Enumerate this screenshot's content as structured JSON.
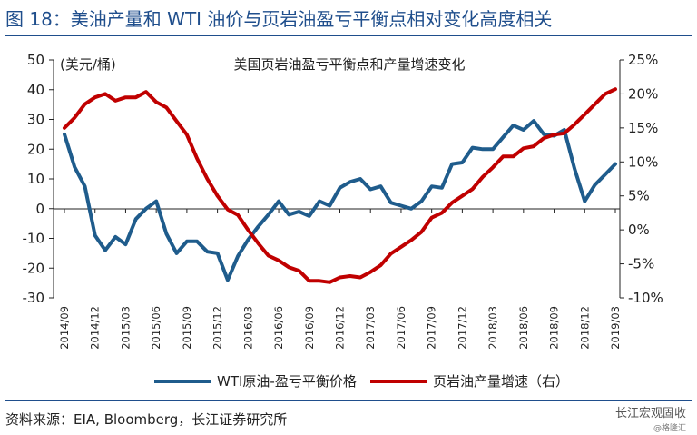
{
  "figure": {
    "title": "图 18：美油产量和 WTI 油价与页岩油盈亏平衡点相对变化高度相关",
    "source": "资料来源：EIA, Bloomberg，长江证券研究所",
    "watermark_brand": "长江宏观固收",
    "watermark_handle": "@格隆汇"
  },
  "chart_data": {
    "type": "line",
    "title": "美国页岩油盈亏平衡点和产量增速变化",
    "y_left_label": "(美元/桶)",
    "y_left_lim": [
      -30,
      50
    ],
    "y_left_ticks": [
      "50",
      "40",
      "30",
      "20",
      "10",
      "0",
      "-10",
      "-20",
      "-30"
    ],
    "y_right_lim": [
      -10,
      25
    ],
    "y_right_ticks": [
      "25%",
      "20%",
      "15%",
      "10%",
      "5%",
      "0%",
      "-5%",
      "-10%"
    ],
    "x_ticks": [
      "2014/09",
      "2014/12",
      "2015/03",
      "2015/06",
      "2015/09",
      "2015/12",
      "2016/03",
      "2016/06",
      "2016/09",
      "2016/12",
      "2017/03",
      "2017/06",
      "2017/09",
      "2017/12",
      "2018/03",
      "2018/06",
      "2018/09",
      "2018/12",
      "2019/03"
    ],
    "grid": false,
    "legend_position": "bottom",
    "series": [
      {
        "name": "WTI原油-盈亏平衡价格",
        "axis": "left",
        "color": "#1f5c8c",
        "points": [
          [
            "2014/09",
            25
          ],
          [
            "2014/10",
            14
          ],
          [
            "2014/11",
            7.5
          ],
          [
            "2014/12",
            -9
          ],
          [
            "2015/01",
            -14
          ],
          [
            "2015/02",
            -9.5
          ],
          [
            "2015/03",
            -12
          ],
          [
            "2015/04",
            -3.5
          ],
          [
            "2015/05",
            0
          ],
          [
            "2015/06",
            2.5
          ],
          [
            "2015/07",
            -8.5
          ],
          [
            "2015/08",
            -15
          ],
          [
            "2015/09",
            -11
          ],
          [
            "2015/10",
            -11
          ],
          [
            "2015/11",
            -14.5
          ],
          [
            "2015/12",
            -15
          ],
          [
            "2016/01",
            -24
          ],
          [
            "2016/02",
            -16
          ],
          [
            "2016/03",
            -10.5
          ],
          [
            "2016/04",
            -6
          ],
          [
            "2016/05",
            -2
          ],
          [
            "2016/06",
            2.5
          ],
          [
            "2016/07",
            -2
          ],
          [
            "2016/08",
            -1
          ],
          [
            "2016/09",
            -2.5
          ],
          [
            "2016/10",
            2.5
          ],
          [
            "2016/11",
            1
          ],
          [
            "2016/12",
            7
          ],
          [
            "2017/01",
            9
          ],
          [
            "2017/02",
            10
          ],
          [
            "2017/03",
            6.5
          ],
          [
            "2017/04",
            7.5
          ],
          [
            "2017/05",
            2
          ],
          [
            "2017/06",
            1
          ],
          [
            "2017/07",
            0
          ],
          [
            "2017/08",
            2.5
          ],
          [
            "2017/09",
            7.5
          ],
          [
            "2017/10",
            7
          ],
          [
            "2017/11",
            15
          ],
          [
            "2017/12",
            15.5
          ],
          [
            "2018/01",
            20.5
          ],
          [
            "2018/02",
            20
          ],
          [
            "2018/03",
            20
          ],
          [
            "2018/04",
            24
          ],
          [
            "2018/05",
            28
          ],
          [
            "2018/06",
            26.5
          ],
          [
            "2018/07",
            29.5
          ],
          [
            "2018/08",
            25
          ],
          [
            "2018/09",
            24.5
          ],
          [
            "2018/10",
            26.5
          ],
          [
            "2018/11",
            13.5
          ],
          [
            "2018/12",
            2.5
          ],
          [
            "2019/01",
            8
          ],
          [
            "2019/02",
            11.5
          ],
          [
            "2019/03",
            15
          ]
        ]
      },
      {
        "name": "页岩油产量增速（右）",
        "axis": "right",
        "color": "#c00000",
        "points": [
          [
            "2014/09",
            15
          ],
          [
            "2014/10",
            16.5
          ],
          [
            "2014/11",
            18.5
          ],
          [
            "2014/12",
            19.5
          ],
          [
            "2015/01",
            20
          ],
          [
            "2015/02",
            19
          ],
          [
            "2015/03",
            19.5
          ],
          [
            "2015/04",
            19.5
          ],
          [
            "2015/05",
            20.3
          ],
          [
            "2015/06",
            18.8
          ],
          [
            "2015/07",
            18
          ],
          [
            "2015/08",
            16
          ],
          [
            "2015/09",
            14
          ],
          [
            "2015/10",
            10.5
          ],
          [
            "2015/11",
            7.5
          ],
          [
            "2015/12",
            5
          ],
          [
            "2016/01",
            3
          ],
          [
            "2016/02",
            2.2
          ],
          [
            "2016/03",
            0
          ],
          [
            "2016/04",
            -2
          ],
          [
            "2016/05",
            -3.8
          ],
          [
            "2016/06",
            -4.5
          ],
          [
            "2016/07",
            -5.5
          ],
          [
            "2016/08",
            -6
          ],
          [
            "2016/09",
            -7.5
          ],
          [
            "2016/10",
            -7.5
          ],
          [
            "2016/11",
            -7.7
          ],
          [
            "2016/12",
            -7
          ],
          [
            "2017/01",
            -6.8
          ],
          [
            "2017/02",
            -7
          ],
          [
            "2017/03",
            -6.2
          ],
          [
            "2017/04",
            -5.2
          ],
          [
            "2017/05",
            -3.5
          ],
          [
            "2017/06",
            -2.5
          ],
          [
            "2017/07",
            -1.5
          ],
          [
            "2017/08",
            -0.3
          ],
          [
            "2017/09",
            1.8
          ],
          [
            "2017/10",
            2.5
          ],
          [
            "2017/11",
            4
          ],
          [
            "2017/12",
            5
          ],
          [
            "2018/01",
            6
          ],
          [
            "2018/02",
            7.8
          ],
          [
            "2018/03",
            9.2
          ],
          [
            "2018/04",
            10.8
          ],
          [
            "2018/05",
            10.8
          ],
          [
            "2018/06",
            12
          ],
          [
            "2018/07",
            12.3
          ],
          [
            "2018/08",
            13.5
          ],
          [
            "2018/09",
            14
          ],
          [
            "2018/10",
            14.2
          ],
          [
            "2018/11",
            15.5
          ],
          [
            "2018/12",
            17
          ],
          [
            "2019/01",
            18.5
          ],
          [
            "2019/02",
            20
          ],
          [
            "2019/03",
            20.7
          ]
        ]
      }
    ]
  }
}
